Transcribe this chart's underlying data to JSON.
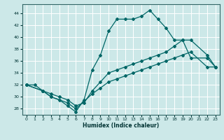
{
  "xlabel": "Humidex (Indice chaleur)",
  "xlim": [
    -0.5,
    23.5
  ],
  "ylim": [
    27,
    45.5
  ],
  "yticks": [
    28,
    30,
    32,
    34,
    36,
    38,
    40,
    42,
    44
  ],
  "xticks": [
    0,
    1,
    2,
    3,
    4,
    5,
    6,
    7,
    8,
    9,
    10,
    11,
    12,
    13,
    14,
    15,
    16,
    17,
    18,
    19,
    20,
    21,
    22,
    23
  ],
  "bg_color": "#cce8e8",
  "line_color": "#006666",
  "grid_color": "#ffffff",
  "line1_x": [
    0,
    1,
    2,
    3,
    4,
    5,
    6,
    7,
    8,
    9,
    10,
    11,
    12,
    13,
    14,
    15,
    16,
    17,
    18,
    19,
    20,
    22,
    23
  ],
  "line1_y": [
    32.0,
    32.0,
    31.0,
    30.0,
    29.5,
    28.5,
    27.5,
    29.5,
    34.5,
    37.0,
    41.0,
    43.0,
    43.0,
    43.0,
    43.5,
    44.5,
    43.0,
    41.5,
    39.5,
    39.5,
    36.5,
    36.5,
    35.0
  ],
  "line2_x": [
    0,
    2,
    3,
    4,
    5,
    6,
    7,
    8,
    9,
    10,
    11,
    12,
    13,
    14,
    15,
    16,
    17,
    18,
    19,
    20,
    22,
    23
  ],
  "line2_y": [
    32.0,
    31.0,
    30.5,
    30.0,
    29.5,
    28.5,
    29.0,
    31.0,
    32.5,
    34.0,
    34.5,
    35.0,
    35.5,
    36.0,
    36.5,
    37.0,
    37.5,
    38.5,
    39.5,
    39.5,
    37.0,
    35.0
  ],
  "line3_x": [
    0,
    2,
    3,
    5,
    6,
    8,
    9,
    10,
    11,
    12,
    13,
    14,
    15,
    16,
    17,
    18,
    19,
    20,
    22,
    23
  ],
  "line3_y": [
    32.0,
    31.0,
    30.0,
    29.0,
    28.0,
    30.5,
    31.5,
    32.5,
    33.0,
    33.5,
    34.0,
    34.5,
    35.0,
    35.5,
    36.0,
    36.5,
    37.0,
    37.5,
    35.0,
    35.0
  ]
}
